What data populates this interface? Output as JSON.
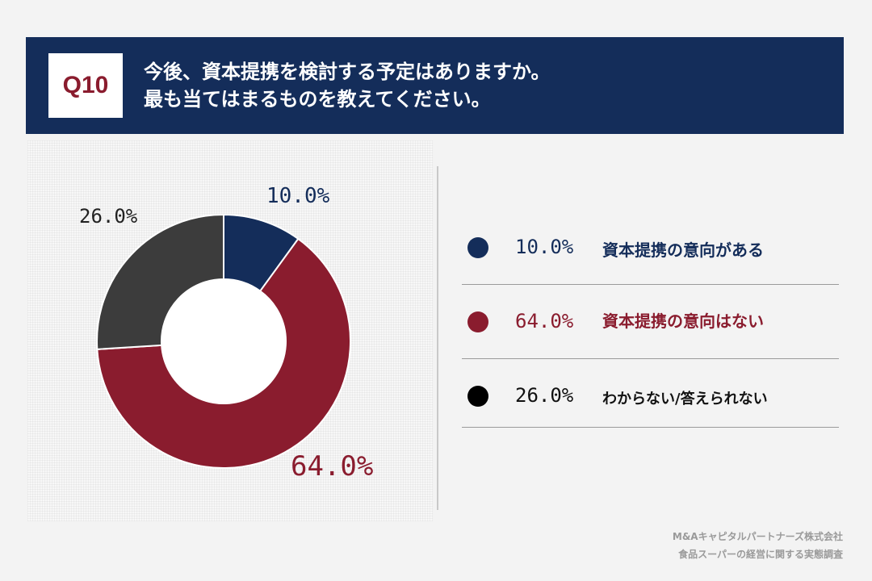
{
  "header": {
    "badge": "Q10",
    "question_line1": "今後、資本提携を検討する予定はありますか。",
    "question_line2": "最も当てはまるものを教えてください。"
  },
  "chart_data": {
    "type": "pie",
    "donut": true,
    "categories": [
      "資本提携の意向がある",
      "資本提携の意向はない",
      "わからない/答えられない"
    ],
    "values": [
      10.0,
      64.0,
      26.0
    ],
    "labels": [
      "10.0%",
      "64.0%",
      "26.0%"
    ],
    "colors": [
      "#142d5a",
      "#8a1c2e",
      "#3c3c3c"
    ],
    "legend_position": "right"
  },
  "legend": {
    "items": [
      {
        "pct": "10.0%",
        "label": "資本提携の意向がある",
        "color": "#142d5a",
        "text_color": "#142d5a"
      },
      {
        "pct": "64.0%",
        "label": "資本提携の意向はない",
        "color": "#8a1c2e",
        "text_color": "#8a1c2e"
      },
      {
        "pct": "26.0%",
        "label": "わからない/答えられない",
        "color": "#000000",
        "text_color": "#111111"
      }
    ]
  },
  "source": {
    "line1": "M&Aキャピタルパートナーズ株式会社",
    "line2": "食品スーパーの経営に関する実態調査"
  }
}
